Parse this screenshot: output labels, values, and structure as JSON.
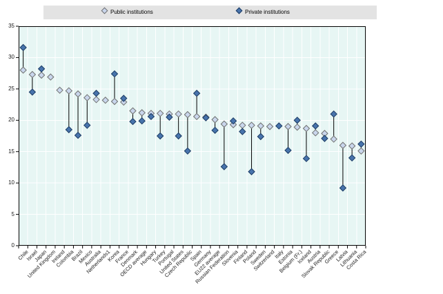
{
  "legend": {
    "items": [
      {
        "label": "Public institutions",
        "marker": "light-diamond-icon",
        "color": "#c9d6ec"
      },
      {
        "label": "Private institutions",
        "marker": "dark-diamond-icon",
        "color": "#4874ac"
      }
    ]
  },
  "chart_data": {
    "type": "scatter",
    "subtype": "dumbbell-vertical",
    "title": "",
    "xlabel": "",
    "ylabel": "",
    "ylim": [
      0,
      35
    ],
    "ytick_step": 5,
    "ytick_labels": [
      "0",
      "5",
      "10",
      "15",
      "20",
      "25",
      "30",
      "35"
    ],
    "grid": true,
    "legend_position": "top",
    "plot_bg": "#e7f6f4",
    "gridline_color": "#ffffff",
    "connector_color": "#000000",
    "categories": [
      "Chile",
      "Israel",
      "Japan",
      "United Kingdom",
      "Ireland",
      "Colombia",
      "Brazil",
      "Mexico",
      "Australia",
      "Netherlands1",
      "Korea",
      "France",
      "Denmark",
      "OECD average",
      "Hungary",
      "Turkey",
      "Portugal",
      "United States",
      "Czech Republic",
      "Spain",
      "Germany",
      "EU22 average",
      "Russian Federation",
      "Slovenia",
      "Finland",
      "Poland",
      "Sweden",
      "Switzerland",
      "Italy",
      "Estonia",
      "Belgium (Fr.)",
      "Iceland",
      "Austria",
      "Slovak Republic",
      "Greece",
      "Latvia",
      "Lithuania",
      "Costa Rica"
    ],
    "series": [
      {
        "name": "Public institutions",
        "marker": "light-diamond",
        "fill": "#c9d6ec",
        "stroke": "#707070",
        "values": [
          28.0,
          27.3,
          27.2,
          26.9,
          24.8,
          24.7,
          24.2,
          23.6,
          23.3,
          23.2,
          23.0,
          22.9,
          21.5,
          21.2,
          21.1,
          21.1,
          21.0,
          21.0,
          20.9,
          20.6,
          20.5,
          20.1,
          19.4,
          19.3,
          19.2,
          19.2,
          19.1,
          19.0,
          null,
          19.0,
          18.9,
          18.7,
          18.0,
          17.9,
          17.0,
          16.0,
          15.9,
          15.1
        ]
      },
      {
        "name": "Private institutions",
        "marker": "dark-diamond",
        "fill": "#4874ac",
        "stroke": "#1b3a63",
        "values": [
          31.6,
          24.5,
          28.2,
          null,
          null,
          18.5,
          17.6,
          19.2,
          24.3,
          null,
          27.4,
          23.5,
          19.8,
          19.9,
          20.6,
          17.5,
          20.5,
          17.5,
          15.1,
          24.3,
          20.4,
          18.4,
          12.6,
          19.9,
          18.2,
          11.8,
          17.4,
          null,
          19.1,
          15.2,
          20.0,
          13.9,
          19.1,
          17.1,
          21.0,
          9.2,
          14.0,
          16.2
        ]
      }
    ]
  }
}
